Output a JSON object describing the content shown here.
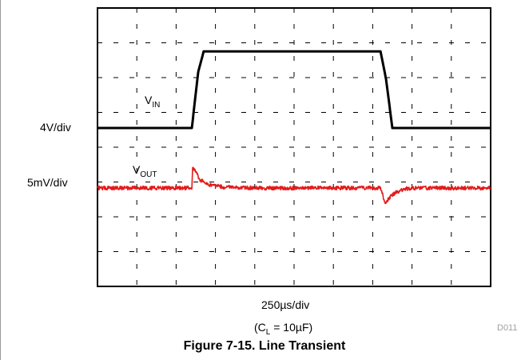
{
  "chart_data": {
    "type": "line",
    "x_axis_label": "250µs/div",
    "condition": {
      "prefix": "(C",
      "sub": "L",
      "suffix": " = 10µF)"
    },
    "figure_id": "D011",
    "caption": "Figure 7-15. Line Transient",
    "grid": true,
    "x_divisions": 10,
    "y_divisions": 8,
    "series": [
      {
        "name": "VIN",
        "label_main": "V",
        "label_sub": "IN",
        "scale_label": "4V/div",
        "color": "#000000",
        "points": [
          [
            0,
            0
          ],
          [
            1.2,
            0
          ],
          [
            1.28,
            1.6
          ],
          [
            1.35,
            2.2
          ],
          [
            1.5,
            2.2
          ],
          [
            3.6,
            2.2
          ],
          [
            3.67,
            1.4
          ],
          [
            3.75,
            0
          ],
          [
            5,
            0
          ]
        ]
      },
      {
        "name": "VOUT",
        "label_main": "V",
        "label_sub": "OUT",
        "scale_label": "5mV/div",
        "color": "#e31b1b",
        "points": [
          [
            0,
            0
          ],
          [
            1.2,
            0
          ],
          [
            1.21,
            1.1
          ],
          [
            1.24,
            1.0
          ],
          [
            1.3,
            0.5
          ],
          [
            1.4,
            0.2
          ],
          [
            1.6,
            0.05
          ],
          [
            2.0,
            0
          ],
          [
            3.6,
            0
          ],
          [
            3.63,
            -0.4
          ],
          [
            3.66,
            -0.95
          ],
          [
            3.7,
            -0.6
          ],
          [
            3.78,
            -0.3
          ],
          [
            3.9,
            -0.05
          ],
          [
            4.1,
            0
          ],
          [
            5,
            0
          ]
        ]
      }
    ]
  }
}
